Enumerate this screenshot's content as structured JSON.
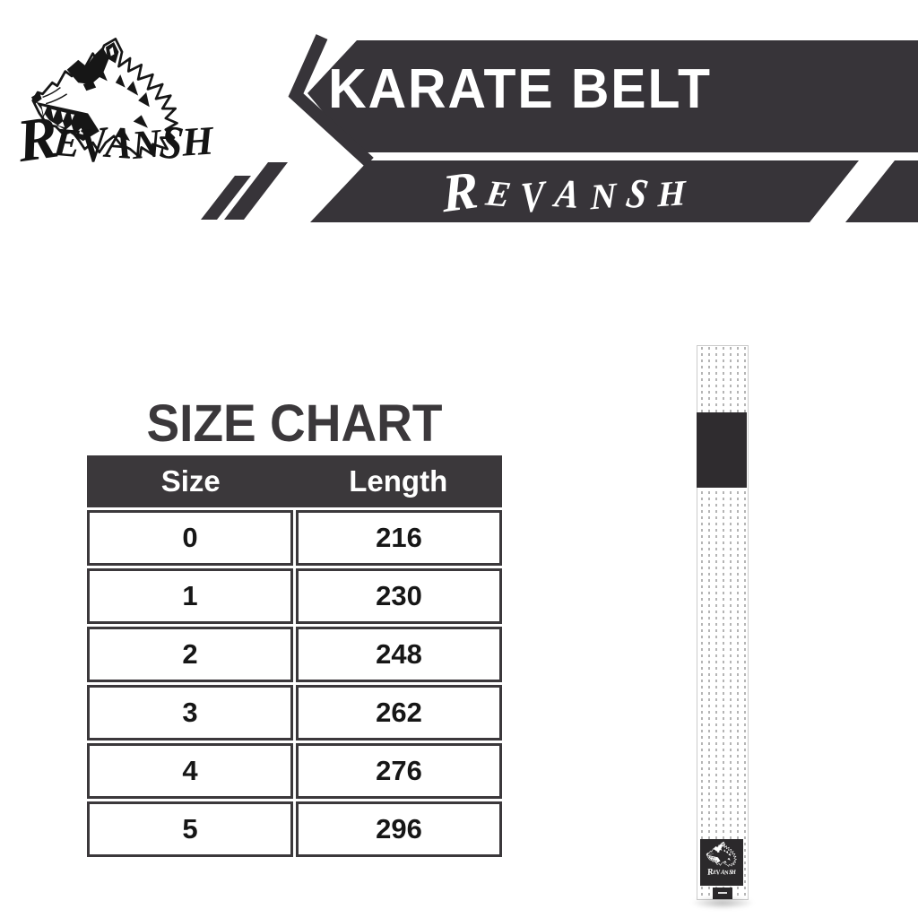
{
  "brand": {
    "wordmark": "REVANSH"
  },
  "banner": {
    "title": "KARATE BELT",
    "brand_script": "REVANSH",
    "dark_color": "#373439"
  },
  "size_chart": {
    "heading": "SIZE CHART",
    "columns": [
      "Size",
      "Length"
    ],
    "rows": [
      [
        "0",
        "216"
      ],
      [
        "1",
        "230"
      ],
      [
        "2",
        "248"
      ],
      [
        "3",
        "262"
      ],
      [
        "4",
        "276"
      ],
      [
        "5",
        "296"
      ]
    ]
  },
  "belt": {
    "label_wordmark": "REVANSH",
    "band_color": "#2f2c2f",
    "stitch_color": "#b5b5b5"
  },
  "chart_data": {
    "type": "table",
    "title": "SIZE CHART",
    "columns": [
      "Size",
      "Length"
    ],
    "rows": [
      [
        0,
        216
      ],
      [
        1,
        230
      ],
      [
        2,
        248
      ],
      [
        3,
        262
      ],
      [
        4,
        276
      ],
      [
        5,
        296
      ]
    ]
  }
}
